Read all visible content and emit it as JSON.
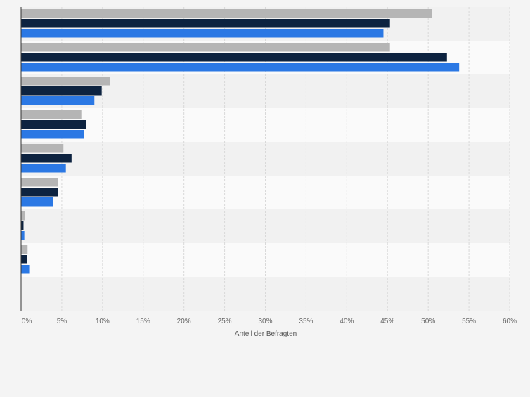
{
  "chart_data": {
    "type": "bar",
    "orientation": "horizontal",
    "xlabel": "Anteil der Befragten",
    "xlim": [
      0,
      60
    ],
    "x_ticks": [
      "0%",
      "5%",
      "10%",
      "15%",
      "20%",
      "25%",
      "30%",
      "35%",
      "40%",
      "45%",
      "50%",
      "55%",
      "60%"
    ],
    "categories": [
      "",
      "",
      "",
      "",
      "",
      "",
      "",
      "",
      ""
    ],
    "series": [
      {
        "color": "#b5b5b5",
        "values": [
          50.5,
          45.3,
          10.9,
          7.4,
          5.2,
          4.5,
          0.5,
          0.8,
          0
        ]
      },
      {
        "color": "#0d2340",
        "values": [
          45.3,
          52.3,
          9.9,
          8.0,
          6.2,
          4.5,
          0.3,
          0.7,
          0
        ]
      },
      {
        "color": "#2b78e4",
        "values": [
          44.5,
          53.8,
          9.0,
          7.7,
          5.5,
          3.9,
          0.4,
          1.0,
          0
        ]
      }
    ],
    "grid": true,
    "legend": "none"
  }
}
